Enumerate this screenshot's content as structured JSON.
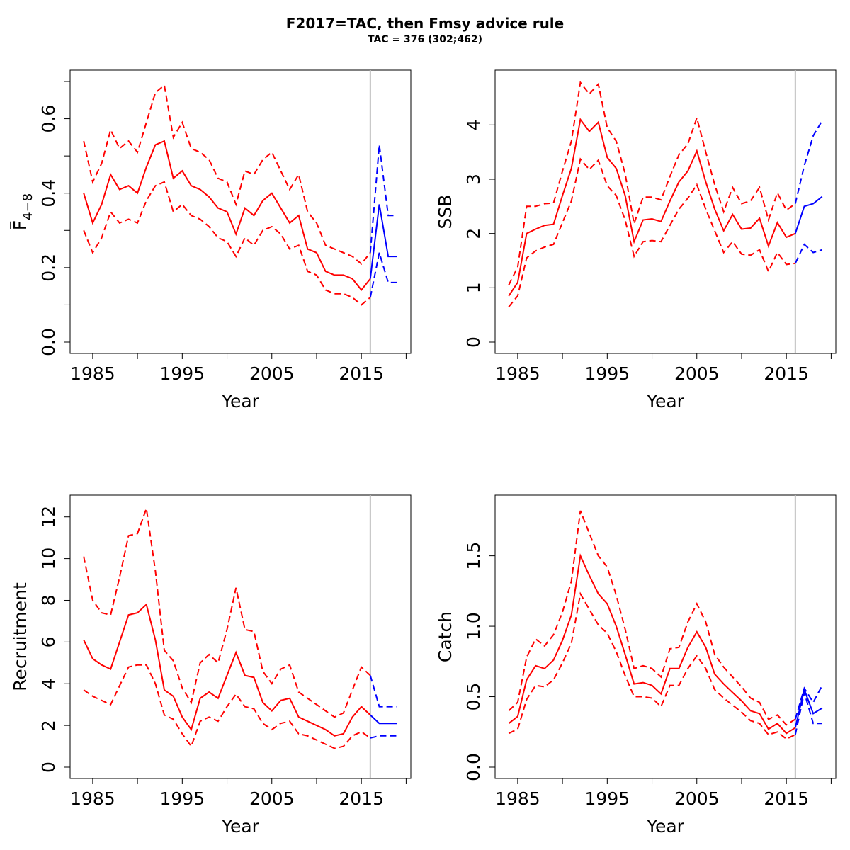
{
  "title": "F2017=TAC, then  Fmsy advice rule",
  "subtitle": "TAC = 376 (302;462)",
  "colors": {
    "history": "#ff0000",
    "forecast": "#0000ff",
    "divider": "#bebebe"
  },
  "chart_data": [
    {
      "type": "line",
      "ylabel": "F4−8",
      "ylabel_main": "F",
      "ylabel_sub": "4−8",
      "xlabel": "Year",
      "xlim": [
        1984,
        2019
      ],
      "ylim": [
        0,
        0.7
      ],
      "xticks": [
        1985,
        1995,
        2005,
        2015
      ],
      "xticks_minor": [
        1990,
        2000,
        2010,
        2020
      ],
      "yticks": [
        0.0,
        0.2,
        0.4,
        0.6
      ],
      "yticks_minor": [
        0.1,
        0.3,
        0.5,
        0.7
      ],
      "ytick_labels": [
        "0.0",
        "0.2",
        "0.4",
        "0.6"
      ],
      "divider_year": 2016,
      "x": [
        1984,
        1985,
        1986,
        1987,
        1988,
        1989,
        1990,
        1991,
        1992,
        1993,
        1994,
        1995,
        1996,
        1997,
        1998,
        1999,
        2000,
        2001,
        2002,
        2003,
        2004,
        2005,
        2006,
        2007,
        2008,
        2009,
        2010,
        2011,
        2012,
        2013,
        2014,
        2015,
        2016
      ],
      "est": [
        0.4,
        0.32,
        0.37,
        0.45,
        0.41,
        0.42,
        0.4,
        0.47,
        0.53,
        0.54,
        0.44,
        0.46,
        0.42,
        0.41,
        0.39,
        0.36,
        0.35,
        0.29,
        0.36,
        0.34,
        0.38,
        0.4,
        0.36,
        0.32,
        0.34,
        0.25,
        0.24,
        0.19,
        0.18,
        0.18,
        0.17,
        0.14,
        0.17
      ],
      "low": [
        0.3,
        0.24,
        0.28,
        0.35,
        0.32,
        0.33,
        0.32,
        0.38,
        0.42,
        0.43,
        0.35,
        0.37,
        0.34,
        0.33,
        0.31,
        0.28,
        0.27,
        0.23,
        0.28,
        0.26,
        0.3,
        0.31,
        0.29,
        0.25,
        0.26,
        0.19,
        0.18,
        0.14,
        0.13,
        0.13,
        0.12,
        0.1,
        0.12
      ],
      "high": [
        0.54,
        0.43,
        0.48,
        0.57,
        0.52,
        0.54,
        0.51,
        0.59,
        0.67,
        0.69,
        0.55,
        0.59,
        0.52,
        0.51,
        0.49,
        0.44,
        0.43,
        0.37,
        0.46,
        0.45,
        0.49,
        0.51,
        0.46,
        0.41,
        0.45,
        0.35,
        0.32,
        0.26,
        0.25,
        0.24,
        0.23,
        0.21,
        0.24
      ],
      "forecast": {
        "x": [
          2016,
          2017,
          2018,
          2019
        ],
        "est": [
          0.17,
          0.37,
          0.23,
          0.23
        ],
        "low": [
          0.12,
          0.24,
          0.16,
          0.16
        ],
        "high": [
          0.24,
          0.53,
          0.34,
          0.34
        ]
      }
    },
    {
      "type": "line",
      "ylabel": "SSB",
      "xlabel": "Year",
      "xlim": [
        1984,
        2019
      ],
      "ylim": [
        0,
        4.8
      ],
      "xticks": [
        1985,
        1995,
        2005,
        2015
      ],
      "xticks_minor": [
        1990,
        2000,
        2010,
        2020
      ],
      "yticks": [
        0,
        1,
        2,
        3,
        4
      ],
      "yticks_minor": [],
      "ytick_labels": [
        "0",
        "1",
        "2",
        "3",
        "4"
      ],
      "divider_year": 2016,
      "x": [
        1984,
        1985,
        1986,
        1987,
        1988,
        1989,
        1990,
        1991,
        1992,
        1993,
        1994,
        1995,
        1996,
        1997,
        1998,
        1999,
        2000,
        2001,
        2002,
        2003,
        2004,
        2005,
        2006,
        2007,
        2008,
        2009,
        2010,
        2011,
        2012,
        2013,
        2014,
        2015,
        2016
      ],
      "est": [
        0.85,
        1.1,
        2.0,
        2.08,
        2.15,
        2.17,
        2.7,
        3.2,
        4.1,
        3.88,
        4.05,
        3.4,
        3.2,
        2.7,
        1.85,
        2.25,
        2.27,
        2.22,
        2.6,
        2.95,
        3.15,
        3.52,
        2.95,
        2.45,
        2.05,
        2.35,
        2.08,
        2.1,
        2.28,
        1.77,
        2.2,
        1.93,
        2.0
      ],
      "low": [
        0.65,
        0.85,
        1.55,
        1.68,
        1.75,
        1.8,
        2.2,
        2.6,
        3.37,
        3.18,
        3.35,
        2.88,
        2.7,
        2.25,
        1.58,
        1.85,
        1.87,
        1.85,
        2.15,
        2.45,
        2.65,
        2.9,
        2.45,
        2.05,
        1.65,
        1.85,
        1.62,
        1.6,
        1.7,
        1.3,
        1.65,
        1.43,
        1.45
      ],
      "high": [
        1.05,
        1.38,
        2.5,
        2.5,
        2.55,
        2.56,
        3.15,
        3.7,
        4.78,
        4.57,
        4.75,
        3.95,
        3.7,
        3.1,
        2.18,
        2.67,
        2.67,
        2.62,
        3.05,
        3.45,
        3.65,
        4.13,
        3.5,
        2.9,
        2.4,
        2.85,
        2.55,
        2.6,
        2.85,
        2.25,
        2.75,
        2.43,
        2.55
      ],
      "forecast": {
        "x": [
          2016,
          2017,
          2018,
          2019
        ],
        "est": [
          2.0,
          2.5,
          2.55,
          2.68
        ],
        "low": [
          1.45,
          1.8,
          1.65,
          1.7
        ],
        "high": [
          2.55,
          3.25,
          3.8,
          4.08
        ]
      }
    },
    {
      "type": "line",
      "ylabel": "Recruitment",
      "xlabel": "Year",
      "xlim": [
        1984,
        2019
      ],
      "ylim": [
        0,
        12.5
      ],
      "xticks": [
        1985,
        1995,
        2005,
        2015
      ],
      "xticks_minor": [
        1990,
        2000,
        2010,
        2020
      ],
      "yticks": [
        0,
        2,
        4,
        6,
        8,
        10,
        12
      ],
      "yticks_minor": [],
      "ytick_labels": [
        "0",
        "2",
        "4",
        "6",
        "8",
        "10",
        "12"
      ],
      "divider_year": 2016,
      "x": [
        1984,
        1985,
        1986,
        1987,
        1988,
        1989,
        1990,
        1991,
        1992,
        1993,
        1994,
        1995,
        1996,
        1997,
        1998,
        1999,
        2000,
        2001,
        2002,
        2003,
        2004,
        2005,
        2006,
        2007,
        2008,
        2009,
        2010,
        2011,
        2012,
        2013,
        2014,
        2015,
        2016
      ],
      "est": [
        6.1,
        5.2,
        4.9,
        4.7,
        6.0,
        7.3,
        7.4,
        7.8,
        6.1,
        3.7,
        3.4,
        2.4,
        1.8,
        3.3,
        3.6,
        3.3,
        4.4,
        5.5,
        4.4,
        4.3,
        3.1,
        2.7,
        3.2,
        3.3,
        2.4,
        2.2,
        2.0,
        1.8,
        1.5,
        1.6,
        2.4,
        2.9,
        2.5
      ],
      "low": [
        3.7,
        3.4,
        3.2,
        3.0,
        3.9,
        4.8,
        4.9,
        4.9,
        4.0,
        2.5,
        2.3,
        1.6,
        1.0,
        2.2,
        2.4,
        2.2,
        2.9,
        3.5,
        2.9,
        2.8,
        2.1,
        1.8,
        2.1,
        2.2,
        1.6,
        1.5,
        1.3,
        1.1,
        0.9,
        1.0,
        1.5,
        1.7,
        1.4
      ],
      "high": [
        10.1,
        8.0,
        7.4,
        7.3,
        9.1,
        11.1,
        11.2,
        12.4,
        9.4,
        5.6,
        5.1,
        3.8,
        3.1,
        5.0,
        5.4,
        5.0,
        6.6,
        8.6,
        6.6,
        6.5,
        4.6,
        4.0,
        4.7,
        4.9,
        3.6,
        3.3,
        3.0,
        2.7,
        2.4,
        2.6,
        3.7,
        4.8,
        4.4
      ],
      "forecast": {
        "x": [
          2016,
          2017,
          2018,
          2019
        ],
        "est": [
          2.5,
          2.1,
          2.1,
          2.1
        ],
        "low": [
          1.4,
          1.5,
          1.5,
          1.5
        ],
        "high": [
          4.4,
          2.9,
          2.9,
          2.9
        ]
      }
    },
    {
      "type": "line",
      "ylabel": "Catch",
      "xlabel": "Year",
      "xlim": [
        1984,
        2019
      ],
      "ylim": [
        0,
        1.85
      ],
      "xticks": [
        1985,
        1995,
        2005,
        2015
      ],
      "xticks_minor": [
        1990,
        2000,
        2010,
        2020
      ],
      "yticks": [
        0.0,
        0.5,
        1.0,
        1.5
      ],
      "yticks_minor": [],
      "ytick_labels": [
        "0.0",
        "0.5",
        "1.0",
        "1.5"
      ],
      "divider_year": 2016,
      "x": [
        1984,
        1985,
        1986,
        1987,
        1988,
        1989,
        1990,
        1991,
        1992,
        1993,
        1994,
        1995,
        1996,
        1997,
        1998,
        1999,
        2000,
        2001,
        2002,
        2003,
        2004,
        2005,
        2006,
        2007,
        2008,
        2009,
        2010,
        2011,
        2012,
        2013,
        2014,
        2015,
        2016
      ],
      "est": [
        0.31,
        0.36,
        0.62,
        0.72,
        0.7,
        0.76,
        0.9,
        1.08,
        1.5,
        1.36,
        1.23,
        1.16,
        1.0,
        0.8,
        0.59,
        0.6,
        0.58,
        0.52,
        0.7,
        0.7,
        0.85,
        0.96,
        0.85,
        0.66,
        0.59,
        0.53,
        0.47,
        0.4,
        0.38,
        0.27,
        0.31,
        0.24,
        0.28
      ],
      "low": [
        0.24,
        0.27,
        0.48,
        0.58,
        0.57,
        0.62,
        0.74,
        0.88,
        1.23,
        1.12,
        1.01,
        0.95,
        0.82,
        0.65,
        0.5,
        0.5,
        0.49,
        0.43,
        0.58,
        0.58,
        0.7,
        0.79,
        0.7,
        0.55,
        0.49,
        0.44,
        0.39,
        0.33,
        0.31,
        0.23,
        0.25,
        0.2,
        0.23
      ],
      "high": [
        0.4,
        0.46,
        0.78,
        0.91,
        0.86,
        0.94,
        1.1,
        1.32,
        1.82,
        1.66,
        1.5,
        1.42,
        1.22,
        0.98,
        0.7,
        0.72,
        0.7,
        0.64,
        0.84,
        0.85,
        1.03,
        1.16,
        1.03,
        0.8,
        0.71,
        0.64,
        0.57,
        0.49,
        0.46,
        0.34,
        0.37,
        0.3,
        0.34
      ],
      "forecast": {
        "x": [
          2016,
          2017,
          2018,
          2019
        ],
        "est": [
          0.28,
          0.55,
          0.38,
          0.42
        ],
        "low": [
          0.23,
          0.53,
          0.31,
          0.31
        ],
        "high": [
          0.34,
          0.56,
          0.46,
          0.58
        ]
      }
    }
  ]
}
